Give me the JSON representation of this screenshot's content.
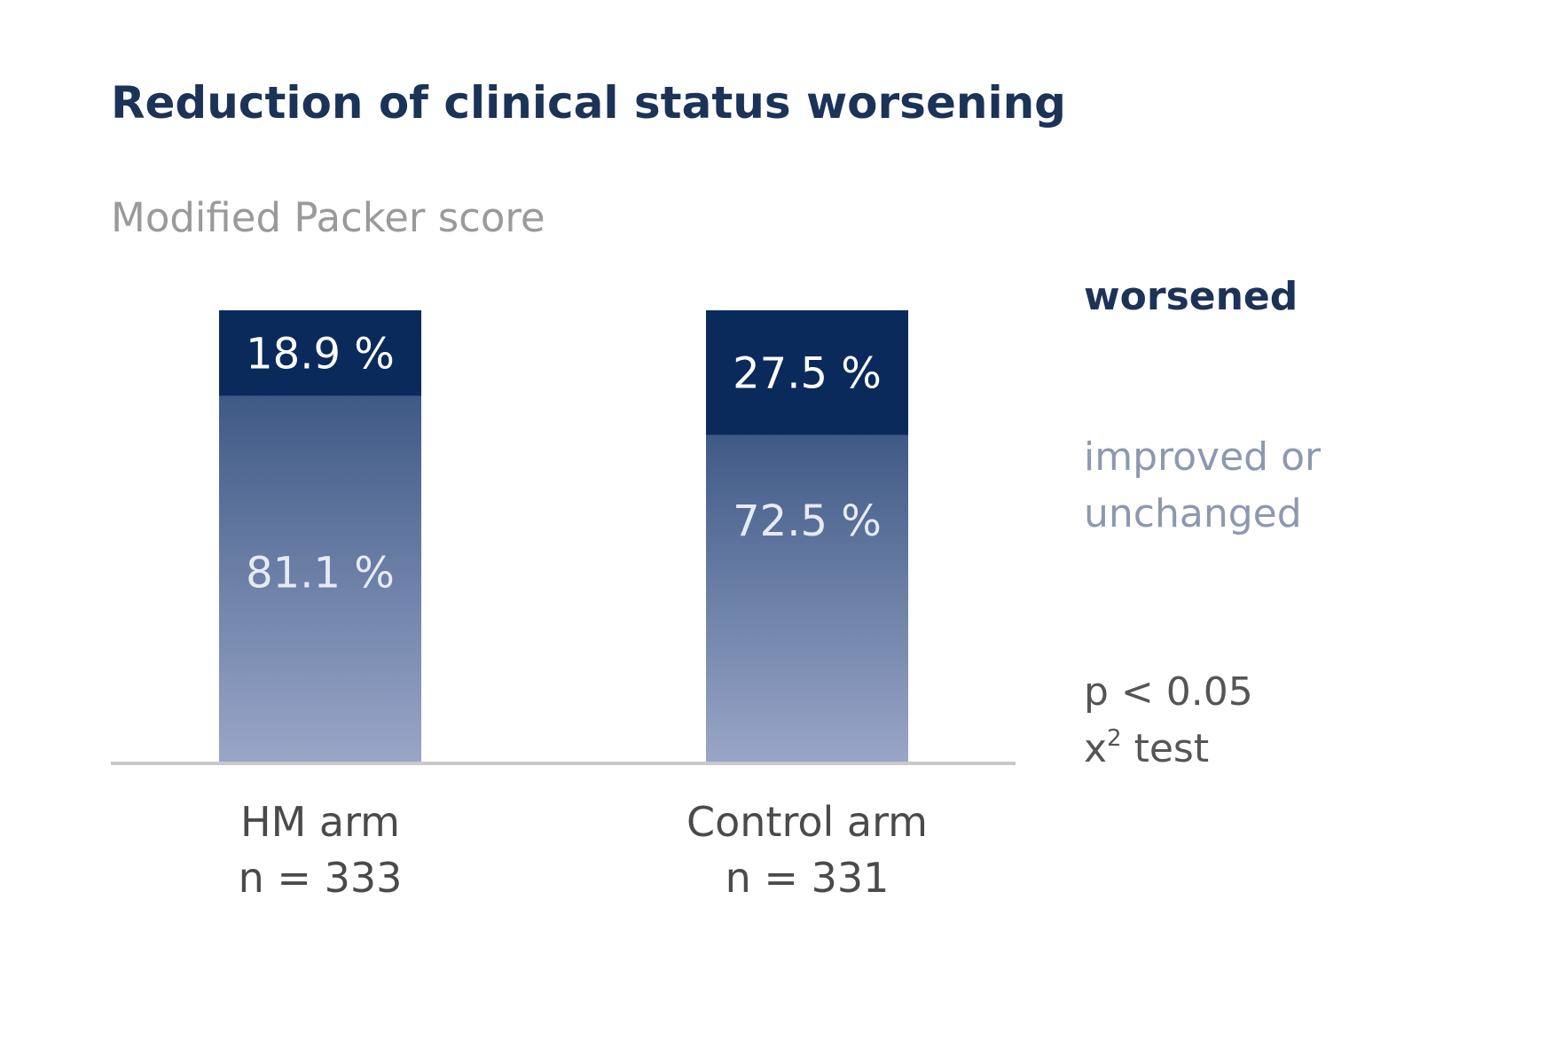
{
  "chart_data": {
    "type": "bar",
    "stacked": true,
    "title": "Reduction of clinical status worsening",
    "subtitle": "Modified Packer score",
    "categories": [
      "HM arm",
      "Control arm"
    ],
    "category_n": [
      "n = 333",
      "n = 331"
    ],
    "series": [
      {
        "name": "improved or unchanged",
        "values": [
          81.1,
          72.5
        ],
        "labels": [
          "81.1 %",
          "72.5 %"
        ]
      },
      {
        "name": "worsened",
        "values": [
          18.9,
          27.5
        ],
        "labels": [
          "18.9 %",
          "27.5 %"
        ]
      }
    ],
    "legend": {
      "worsened": "worsened",
      "improved_line1": "improved or",
      "improved_line2": "unchanged",
      "placement": "right"
    },
    "ylim": [
      0,
      100
    ],
    "grid": false,
    "note": {
      "line1": "p < 0.05",
      "line2_base": "x",
      "line2_sup": "2",
      "line2_rest": " test"
    },
    "colors": {
      "worsened": "#0b2a5c",
      "improved_top": "#3f5a86",
      "improved_bottom": "#9aa6c8",
      "axis": "#c9c9c9"
    }
  }
}
